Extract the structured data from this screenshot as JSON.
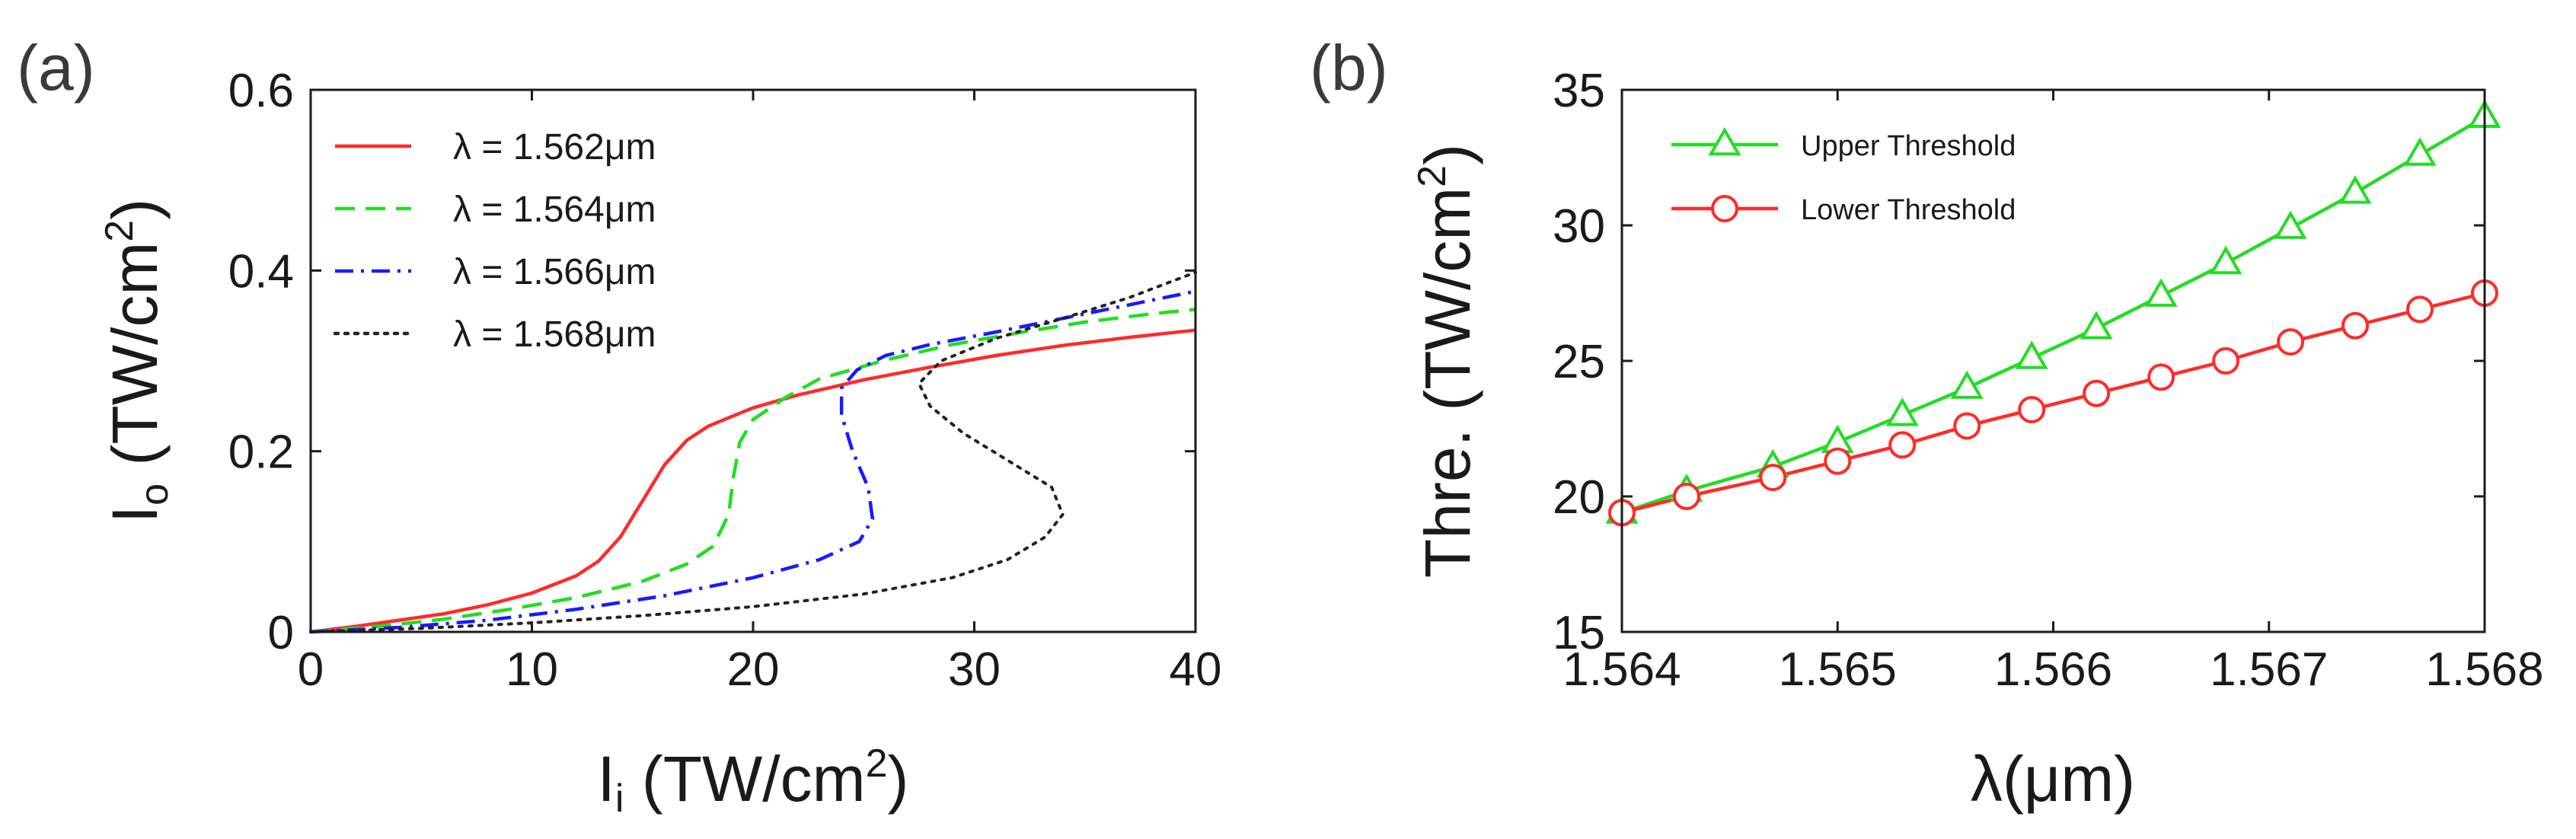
{
  "chart_data": [
    {
      "type": "line",
      "panel_label": "(a)",
      "xlabel_main": "I",
      "xlabel_sub": "i",
      "xlabel_unit": " (TW/cm",
      "xlabel_sup": "2",
      "xlabel_close": ")",
      "ylabel_main": "I",
      "ylabel_sub": "o",
      "ylabel_unit": " (TW/cm",
      "ylabel_sup": "2",
      "ylabel_close": ")",
      "xlim": [
        0,
        40
      ],
      "ylim": [
        0,
        0.6
      ],
      "x_ticks": [
        "0",
        "10",
        "20",
        "30",
        "40"
      ],
      "y_ticks": [
        "0",
        "0.2",
        "0.4",
        "0.6"
      ],
      "legend_position": "top-left",
      "series": [
        {
          "name": "λ = 1.562μm",
          "color": "#ff2a2a",
          "style": "solid",
          "points": [
            [
              0,
              0
            ],
            [
              2,
              0.006
            ],
            [
              4,
              0.013
            ],
            [
              6,
              0.02
            ],
            [
              8,
              0.03
            ],
            [
              10,
              0.043
            ],
            [
              12,
              0.062
            ],
            [
              13,
              0.078
            ],
            [
              14,
              0.105
            ],
            [
              15,
              0.145
            ],
            [
              16,
              0.185
            ],
            [
              17,
              0.212
            ],
            [
              18,
              0.228
            ],
            [
              20,
              0.248
            ],
            [
              22,
              0.262
            ],
            [
              25,
              0.279
            ],
            [
              28,
              0.293
            ],
            [
              31,
              0.306
            ],
            [
              34,
              0.317
            ],
            [
              37,
              0.326
            ],
            [
              40,
              0.334
            ]
          ]
        },
        {
          "name": "λ = 1.564μm",
          "color": "#22dd22",
          "style": "dashed",
          "points": [
            [
              0,
              0
            ],
            [
              3,
              0.006
            ],
            [
              6,
              0.014
            ],
            [
              9,
              0.025
            ],
            [
              12,
              0.038
            ],
            [
              15,
              0.056
            ],
            [
              17,
              0.075
            ],
            [
              18.2,
              0.095
            ],
            [
              18.9,
              0.13
            ],
            [
              19.1,
              0.17
            ],
            [
              19.4,
              0.21
            ],
            [
              20,
              0.235
            ],
            [
              21.5,
              0.26
            ],
            [
              23,
              0.28
            ],
            [
              26,
              0.301
            ],
            [
              29,
              0.318
            ],
            [
              32,
              0.331
            ],
            [
              35,
              0.343
            ],
            [
              38,
              0.352
            ],
            [
              40,
              0.357
            ]
          ]
        },
        {
          "name": "λ = 1.566μm",
          "color": "#1a1aff",
          "style": "dashdot",
          "points": [
            [
              0,
              0
            ],
            [
              4,
              0.005
            ],
            [
              8,
              0.013
            ],
            [
              12,
              0.025
            ],
            [
              16,
              0.04
            ],
            [
              20,
              0.06
            ],
            [
              23,
              0.08
            ],
            [
              24.8,
              0.1
            ],
            [
              25.4,
              0.125
            ],
            [
              25.2,
              0.16
            ],
            [
              24.5,
              0.2
            ],
            [
              24,
              0.24
            ],
            [
              24,
              0.27
            ],
            [
              24.7,
              0.29
            ],
            [
              26,
              0.306
            ],
            [
              28,
              0.318
            ],
            [
              31,
              0.332
            ],
            [
              34,
              0.347
            ],
            [
              37,
              0.362
            ],
            [
              40,
              0.377
            ]
          ]
        },
        {
          "name": "λ = 1.568μm",
          "color": "#222222",
          "style": "dotted",
          "points": [
            [
              0,
              0
            ],
            [
              5,
              0.004
            ],
            [
              10,
              0.01
            ],
            [
              15,
              0.018
            ],
            [
              20,
              0.028
            ],
            [
              25,
              0.042
            ],
            [
              29,
              0.06
            ],
            [
              31.5,
              0.08
            ],
            [
              33.2,
              0.105
            ],
            [
              34,
              0.13
            ],
            [
              33.5,
              0.16
            ],
            [
              31.5,
              0.19
            ],
            [
              29.5,
              0.22
            ],
            [
              28,
              0.25
            ],
            [
              27.5,
              0.275
            ],
            [
              28.5,
              0.3
            ],
            [
              31,
              0.325
            ],
            [
              34,
              0.347
            ],
            [
              37,
              0.37
            ],
            [
              40,
              0.398
            ]
          ]
        }
      ]
    },
    {
      "type": "line",
      "panel_label": "(b)",
      "xlabel": "λ(μm)",
      "ylabel_main": "Thre. (TW/cm",
      "ylabel_sup": "2",
      "ylabel_close": ")",
      "xlim": [
        1.564,
        1.568
      ],
      "ylim": [
        15,
        35
      ],
      "x_ticks": [
        "1.564",
        "1.565",
        "1.566",
        "1.567",
        "1.568"
      ],
      "y_ticks": [
        "15",
        "20",
        "25",
        "30",
        "35"
      ],
      "legend_position": "top-left",
      "x": [
        1.564,
        1.5643,
        1.5647,
        1.565,
        1.5653,
        1.5656,
        1.5659,
        1.5662,
        1.5665,
        1.5668,
        1.5671,
        1.5674,
        1.5677,
        1.568
      ],
      "series": [
        {
          "name": "Upper Threshold",
          "color": "#22dd22",
          "marker": "triangle",
          "values": [
            19.4,
            20.2,
            21.1,
            22.0,
            23.0,
            24.0,
            25.1,
            26.2,
            27.4,
            28.6,
            29.9,
            31.2,
            32.6,
            34.0
          ]
        },
        {
          "name": "Lower Threshold",
          "color": "#ff2a2a",
          "marker": "circle",
          "values": [
            19.4,
            20.0,
            20.7,
            21.3,
            21.9,
            22.6,
            23.2,
            23.8,
            24.4,
            25.0,
            25.7,
            26.3,
            26.9,
            27.5
          ]
        }
      ]
    }
  ]
}
